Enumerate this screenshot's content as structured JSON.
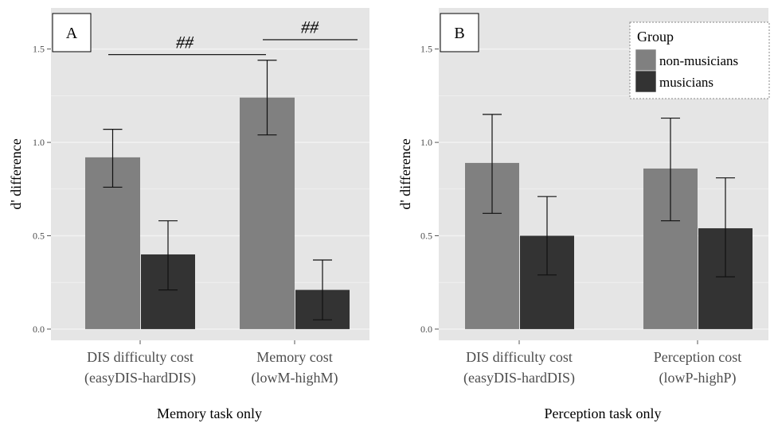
{
  "chart_data": [
    {
      "type": "bar",
      "panel_label": "A",
      "title": "",
      "xlabel": "Memory task only",
      "ylabel": "d' difference",
      "ylim": [
        -0.06,
        1.72
      ],
      "yticks": [
        "0.0",
        "0.5",
        "1.0",
        "1.5"
      ],
      "categories": [
        [
          "DIS difficulty cost",
          "(easyDIS-hardDIS)"
        ],
        [
          "Memory cost",
          "(lowM-highM)"
        ]
      ],
      "series": [
        {
          "name": "non-musicians",
          "values": [
            0.92,
            1.24
          ],
          "error_low": [
            0.76,
            1.04
          ],
          "error_high": [
            1.07,
            1.44
          ]
        },
        {
          "name": "musicians",
          "values": [
            0.4,
            0.21
          ],
          "error_low": [
            0.21,
            0.05
          ],
          "error_high": [
            0.58,
            0.37
          ]
        }
      ],
      "annotations": [
        {
          "text": "##",
          "from": 0,
          "to": 1,
          "y": 1.47,
          "text_y": 1.535
        },
        {
          "text": "##",
          "from": 1.3,
          "to": 1.9,
          "y": 1.55,
          "text_y": 1.615
        }
      ],
      "grid": true,
      "legend": null
    },
    {
      "type": "bar",
      "panel_label": "B",
      "title": "",
      "xlabel": "Perception task only",
      "ylabel": "d' difference",
      "ylim": [
        -0.06,
        1.72
      ],
      "yticks": [
        "0.0",
        "0.5",
        "1.0",
        "1.5"
      ],
      "categories": [
        [
          "DIS difficulty cost",
          "(easyDIS-hardDIS)"
        ],
        [
          "Perception cost",
          "(lowP-highP)"
        ]
      ],
      "series": [
        {
          "name": "non-musicians",
          "values": [
            0.89,
            0.86
          ],
          "error_low": [
            0.62,
            0.58
          ],
          "error_high": [
            1.15,
            1.13
          ]
        },
        {
          "name": "musicians",
          "values": [
            0.5,
            0.54
          ],
          "error_low": [
            0.29,
            0.28
          ],
          "error_high": [
            0.71,
            0.81
          ]
        }
      ],
      "annotations": [],
      "grid": true,
      "legend": {
        "title": "Group",
        "placement": "top-right",
        "items": [
          "non-musicians",
          "musicians"
        ]
      }
    }
  ],
  "colors": {
    "panel_bg": "#e5e5e5",
    "grid": "#f2f2f2",
    "non_musicians": "#808080",
    "musicians": "#333333",
    "axis_text": "#4d4d4d",
    "title_text": "#000000",
    "legend_bg": "#ffffff",
    "legend_border": "#888888"
  }
}
